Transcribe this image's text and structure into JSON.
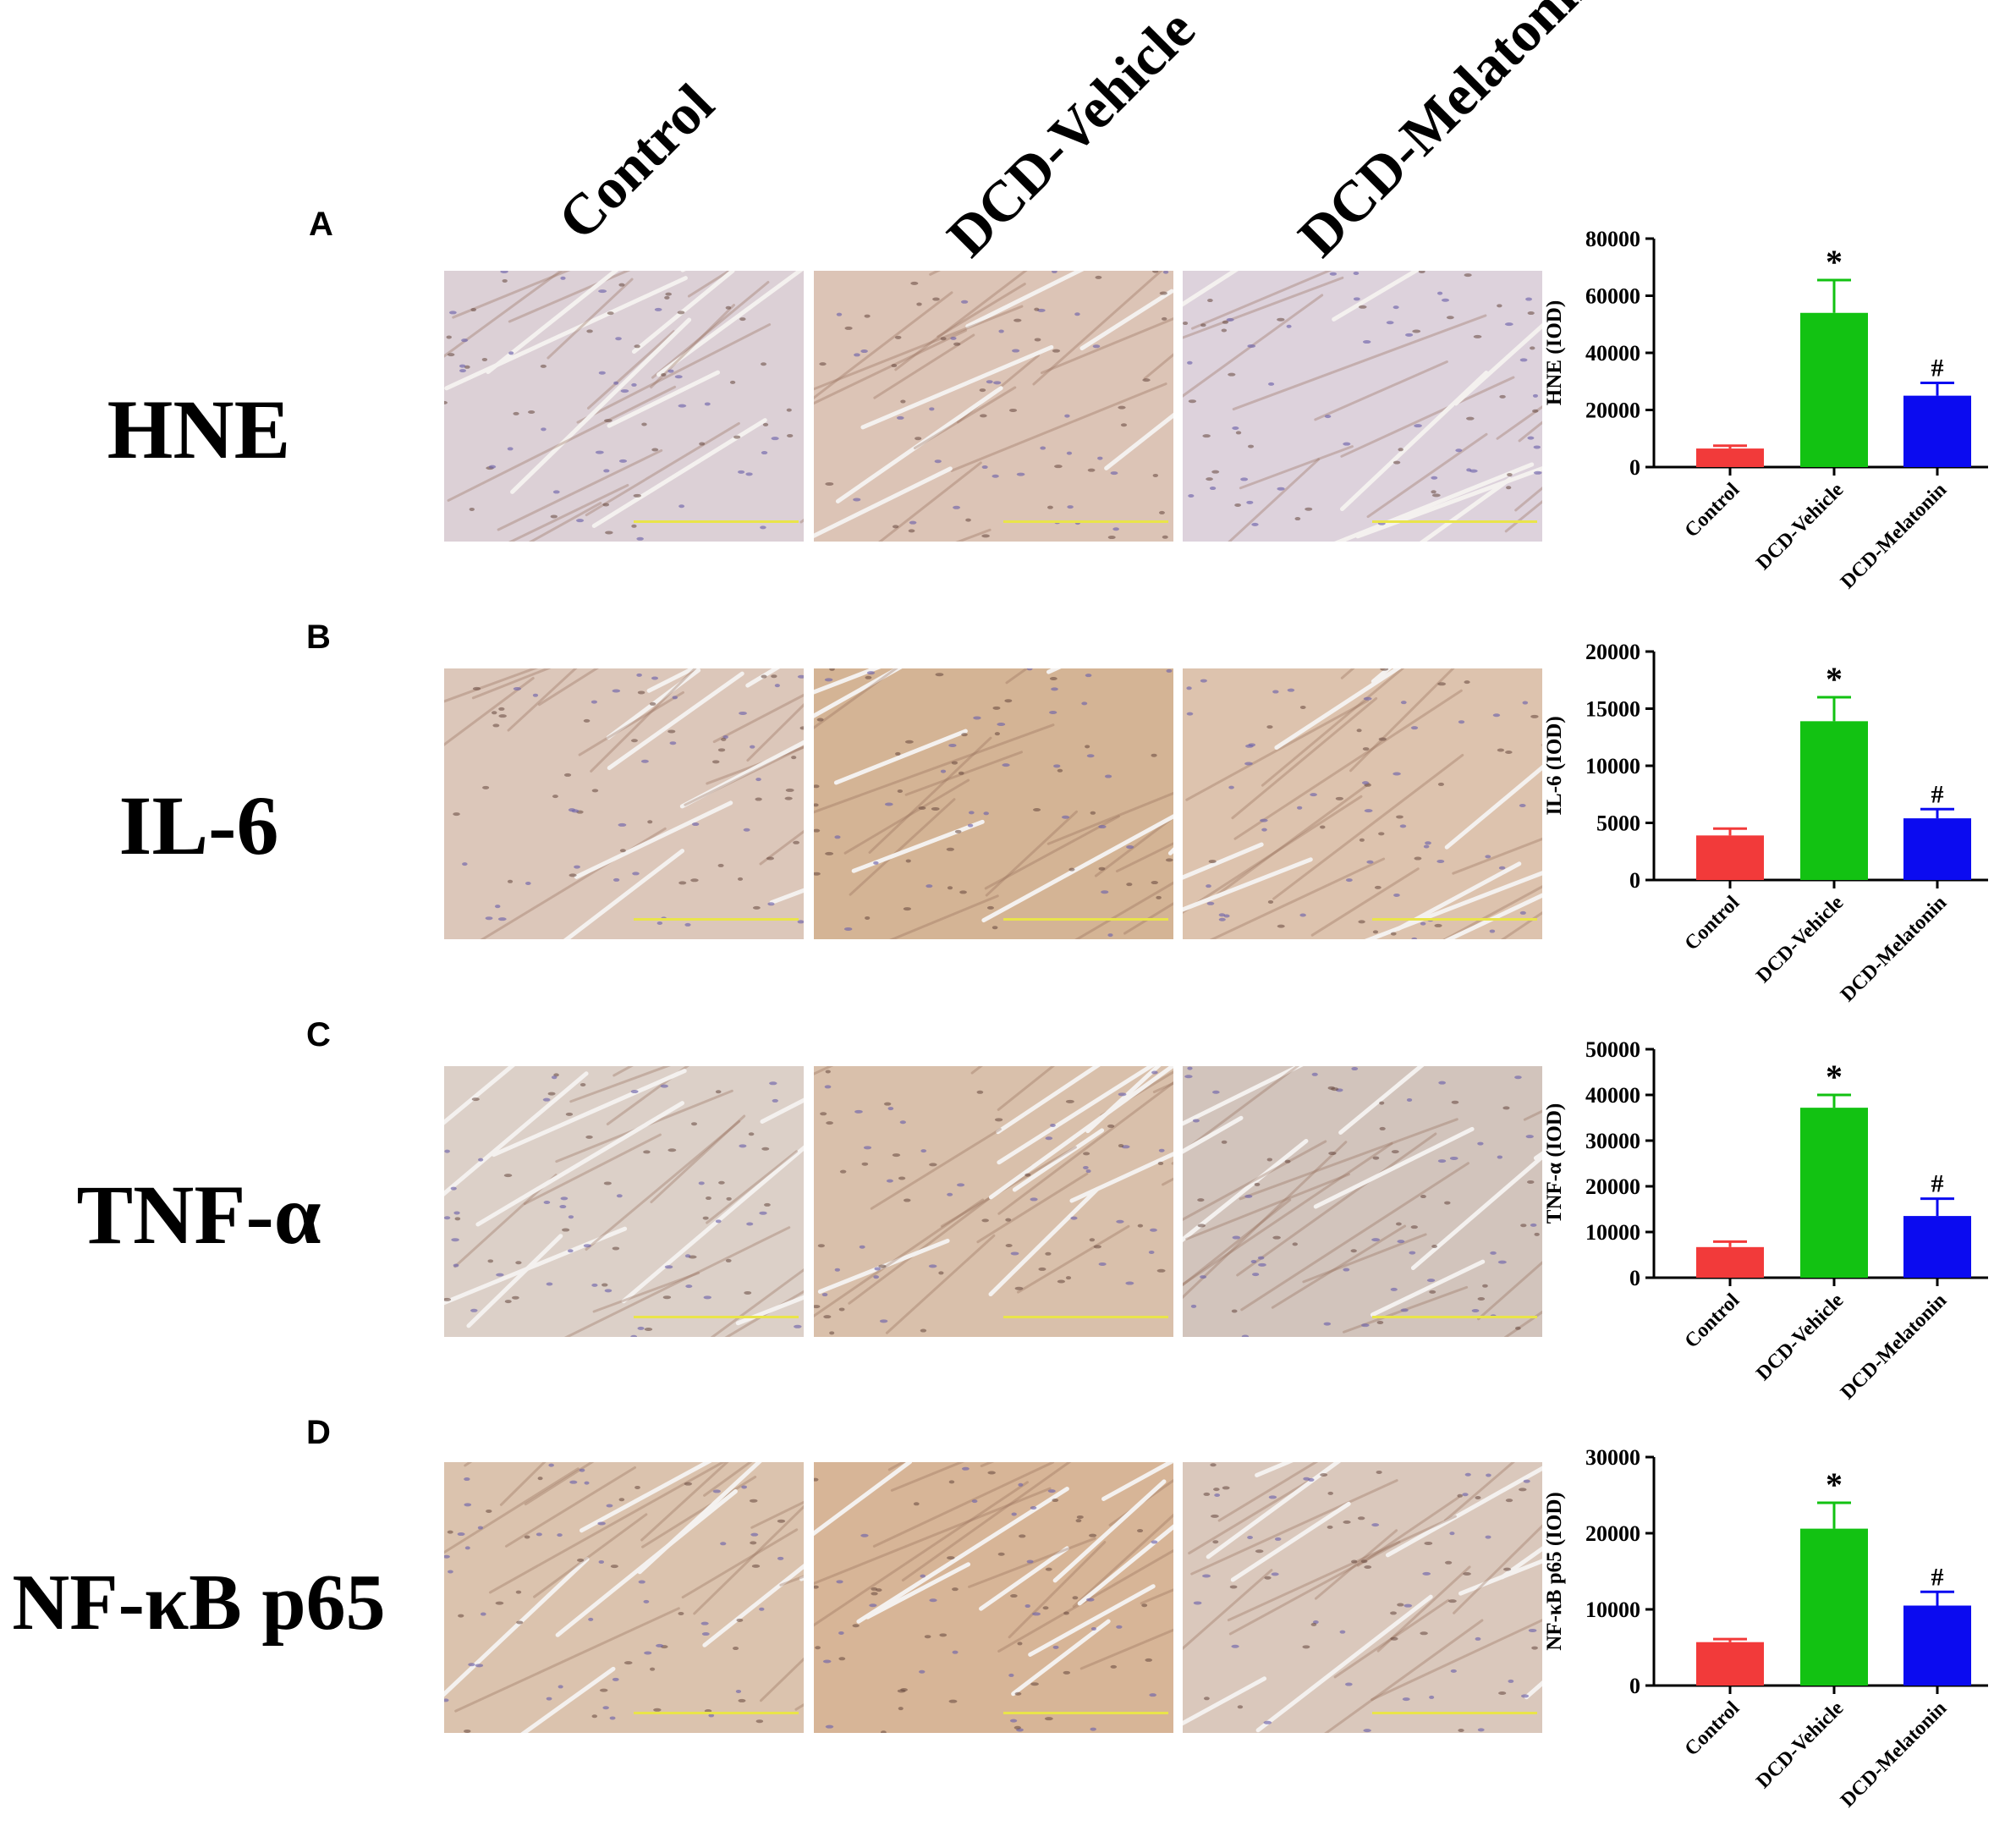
{
  "column_headers": [
    "Control",
    "DCD-Vehicle",
    "DCD-Melatonin"
  ],
  "panels": [
    {
      "letter": "A",
      "marker": "HNE",
      "micro_tones": [
        "#dcd0d6",
        "#dcc4b6",
        "#ddd2dc"
      ]
    },
    {
      "letter": "B",
      "marker": "IL-6",
      "micro_tones": [
        "#dcc7ba",
        "#d4b495",
        "#ddc3ae"
      ]
    },
    {
      "letter": "C",
      "marker": "TNF-α",
      "micro_tones": [
        "#dcd0c8",
        "#d9c0ab",
        "#d2c4bc"
      ]
    },
    {
      "letter": "D",
      "marker": "NF-κB p65",
      "micro_tones": [
        "#dbc3ae",
        "#d7b597",
        "#dac8bc"
      ]
    }
  ],
  "colors": {
    "Control": "#f23a3a",
    "DCD-Vehicle": "#12c212",
    "DCD-Melatonin": "#0b0bf0",
    "scale_bar": "#e9e44a"
  },
  "chart_data": [
    {
      "type": "bar",
      "ylabel": "HNE (IOD)",
      "categories": [
        "Control",
        "DCD-Vehicle",
        "DCD-Melatonin"
      ],
      "values": [
        6500,
        54000,
        25000
      ],
      "errors": [
        1000,
        11500,
        4500
      ],
      "annotations": [
        "",
        "*",
        "#"
      ],
      "ylim": [
        0,
        80000
      ],
      "yticks": [
        0,
        20000,
        40000,
        60000,
        80000
      ]
    },
    {
      "type": "bar",
      "ylabel": "IL-6 (IOD)",
      "categories": [
        "Control",
        "DCD-Vehicle",
        "DCD-Melatonin"
      ],
      "values": [
        3900,
        13900,
        5400
      ],
      "errors": [
        600,
        2100,
        800
      ],
      "annotations": [
        "",
        "*",
        "#"
      ],
      "ylim": [
        0,
        20000
      ],
      "yticks": [
        0,
        5000,
        10000,
        15000,
        20000
      ]
    },
    {
      "type": "bar",
      "ylabel": "TNF-α (IOD)",
      "categories": [
        "Control",
        "DCD-Vehicle",
        "DCD-Melatonin"
      ],
      "values": [
        6700,
        37200,
        13500
      ],
      "errors": [
        1200,
        2800,
        3800
      ],
      "annotations": [
        "",
        "*",
        "#"
      ],
      "ylim": [
        0,
        50000
      ],
      "yticks": [
        0,
        10000,
        20000,
        30000,
        40000,
        50000
      ]
    },
    {
      "type": "bar",
      "ylabel": "NF-κB p65 (IOD)",
      "categories": [
        "Control",
        "DCD-Vehicle",
        "DCD-Melatonin"
      ],
      "values": [
        5700,
        20600,
        10500
      ],
      "errors": [
        400,
        3400,
        1800
      ],
      "annotations": [
        "",
        "*",
        "#"
      ],
      "ylim": [
        0,
        30000
      ],
      "yticks": [
        0,
        10000,
        20000,
        30000
      ]
    }
  ]
}
